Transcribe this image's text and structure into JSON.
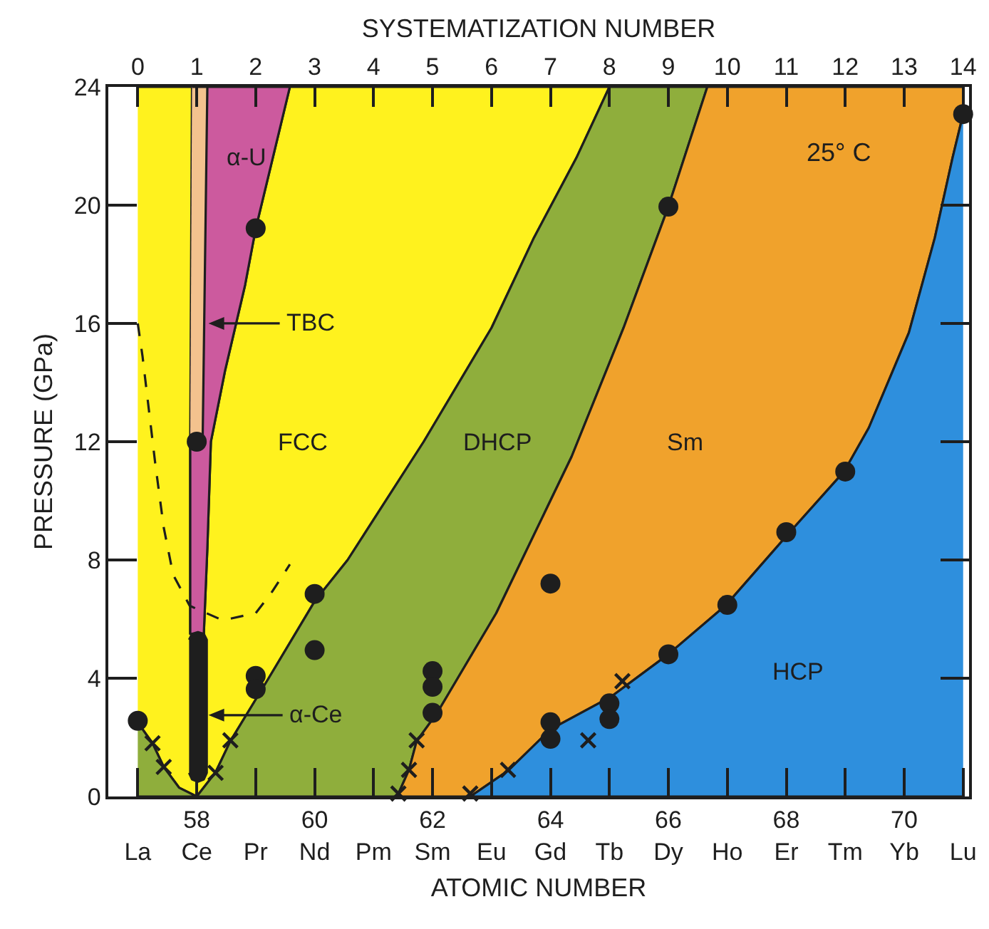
{
  "chart_data": {
    "type": "area",
    "xlabel": "ATOMIC NUMBER",
    "x2label": "SYSTEMATIZATION NUMBER",
    "ylabel": "PRESSURE (GPa)",
    "xlim": [
      56.5,
      71.1
    ],
    "x2lim": [
      -0.5,
      14.1
    ],
    "ylim": [
      0,
      24
    ],
    "xticks": [
      {
        "value": 57,
        "label": "La"
      },
      {
        "value": 58,
        "label": "58\nCe"
      },
      {
        "value": 59,
        "label": "Pr"
      },
      {
        "value": 60,
        "label": "60\nNd"
      },
      {
        "value": 61,
        "label": "Pm"
      },
      {
        "value": 62,
        "label": "62\nSm"
      },
      {
        "value": 63,
        "label": "Eu"
      },
      {
        "value": 64,
        "label": "64\nGd"
      },
      {
        "value": 65,
        "label": "Tb"
      },
      {
        "value": 66,
        "label": "66\nDy"
      },
      {
        "value": 67,
        "label": "Ho"
      },
      {
        "value": 68,
        "label": "68\nEr"
      },
      {
        "value": 69,
        "label": "Tm"
      },
      {
        "value": 70,
        "label": "70\nYb"
      },
      {
        "value": 71,
        "label": "Lu"
      }
    ],
    "x2ticks": [
      0,
      1,
      2,
      3,
      4,
      5,
      6,
      7,
      8,
      9,
      10,
      11,
      12,
      13,
      14
    ],
    "yticks": [
      0,
      4,
      8,
      12,
      16,
      20,
      24
    ],
    "line_style": "solid",
    "marker": "none",
    "series": [
      {
        "name": "FCC",
        "color": "#fff21e",
        "x": [
          57,
          57.92,
          57.89,
          57.89,
          58.12,
          58.18,
          58.24,
          58.48,
          58.82,
          59.0,
          59.58,
          65.0,
          64.44,
          63.72,
          63.0,
          61.85,
          60.56,
          60.0,
          59.22,
          58.57,
          58.32,
          58.0,
          57.7,
          57.44,
          57.25,
          57
        ],
        "values": [
          24,
          24,
          12,
          5.5,
          5.5,
          8.4,
          12,
          14.4,
          17.3,
          19.2,
          24,
          24,
          21.6,
          18.9,
          15.85,
          12,
          8,
          6.6,
          4,
          1.87,
          0.82,
          0,
          0.3,
          1.0,
          1.8,
          2.5
        ]
      },
      {
        "name": "α-U",
        "color": "#cc5a9e",
        "x": [
          58.18,
          59.58,
          59.0,
          58.82,
          58.48,
          58.24,
          58.18,
          58.12,
          57.89,
          57.89,
          58.1
        ],
        "values": [
          24,
          24,
          19.2,
          17.3,
          14.4,
          12,
          8.4,
          5.5,
          5.5,
          12,
          12
        ]
      },
      {
        "color": "#f3c28e",
        "x": [
          57.92,
          58.18,
          58.1,
          58.0,
          57.89
        ],
        "values": [
          24,
          24,
          12,
          11.8,
          12
        ]
      },
      {
        "name": "DHCP",
        "color": "#8fae3c",
        "x": [
          57,
          57.25,
          57.44,
          57.7,
          58.0,
          58.32,
          58.57,
          59.22,
          60.0,
          60.56,
          61.85,
          63.0,
          63.72,
          64.44,
          65.0,
          66.66,
          66.0,
          65.24,
          64.36,
          63.08,
          62.08,
          61.73,
          61.6,
          61.4,
          57
        ],
        "values": [
          2.5,
          1.8,
          1.0,
          0.3,
          0,
          0.82,
          1.87,
          4,
          6.6,
          8,
          12,
          15.85,
          18.9,
          21.6,
          24,
          24,
          19.95,
          15.85,
          11.5,
          6.2,
          2.83,
          1.87,
          0.9,
          0,
          0
        ]
      },
      {
        "name": "Sm",
        "color": "#f0a22c",
        "x": [
          71.0,
          70.82,
          70.52,
          70.08,
          69.4,
          68.98,
          68.06,
          66.98,
          66.0,
          65.04,
          64.0,
          63.28,
          62.64,
          61.4,
          61.6,
          61.73,
          62.08,
          63.08,
          64.36,
          65.24,
          66.0,
          66.66,
          71.0
        ],
        "values": [
          23.08,
          21.6,
          18.9,
          15.69,
          12.47,
          10.99,
          8.94,
          6.48,
          4.81,
          3.39,
          2.27,
          0.87,
          0,
          0,
          0.9,
          1.87,
          2.83,
          6.2,
          11.5,
          15.85,
          19.95,
          24,
          24
        ]
      },
      {
        "name": "HCP",
        "color": "#2e8fdd",
        "x": [
          71.0,
          70.82,
          70.52,
          70.08,
          69.4,
          68.98,
          68.06,
          66.98,
          66.0,
          65.04,
          64.0,
          63.28,
          62.64,
          71.0
        ],
        "values": [
          23.08,
          21.6,
          18.9,
          15.69,
          12.47,
          10.99,
          8.94,
          6.48,
          4.81,
          3.39,
          2.27,
          0.87,
          0,
          0
        ]
      },
      {
        "color": "#1e1e1e",
        "x": [
          57.87,
          57.92,
          58.02,
          58.12,
          58.17,
          58.17,
          58.12,
          58.02,
          57.92,
          57.87
        ],
        "values": [
          5.3,
          5.5,
          5.56,
          5.5,
          5.3,
          0.8,
          0.58,
          0.5,
          0.58,
          0.8
        ]
      },
      {
        "type": "line",
        "color": "#1e1e1e",
        "line_style": "dashed",
        "x": [
          57.0,
          57.08,
          57.3,
          57.44,
          57.6,
          57.88,
          58.44,
          59.0,
          59.28,
          59.58
        ],
        "values": [
          16.0,
          14.9,
          11.2,
          9.1,
          7.5,
          6.45,
          5.96,
          6.2,
          6.93,
          7.85
        ]
      },
      {
        "type": "scatter",
        "color": "#1e1e1e",
        "marker": "circle",
        "x": [
          57,
          58,
          59,
          59,
          59,
          60,
          60,
          62,
          62,
          62,
          64,
          64,
          64,
          65,
          65,
          66,
          66,
          67,
          68,
          69,
          71
        ],
        "values": [
          2.56,
          12.0,
          19.22,
          4.08,
          3.63,
          6.85,
          4.95,
          4.24,
          3.71,
          2.83,
          7.2,
          2.51,
          1.95,
          3.15,
          2.62,
          4.81,
          19.95,
          6.48,
          8.94,
          10.99,
          23.08
        ]
      },
      {
        "type": "scatter",
        "color": "#1e1e1e",
        "marker": "cross",
        "x": [
          57.25,
          57.44,
          58.32,
          58.57,
          61.42,
          61.6,
          61.73,
          62.64,
          63.28,
          64.64,
          65.22
        ],
        "values": [
          1.8,
          1.0,
          0.8,
          1.9,
          0.1,
          0.9,
          1.9,
          0.1,
          0.9,
          1.9,
          3.9
        ]
      }
    ],
    "annotations": [
      "TBC",
      "α-Ce",
      "25° C"
    ]
  }
}
